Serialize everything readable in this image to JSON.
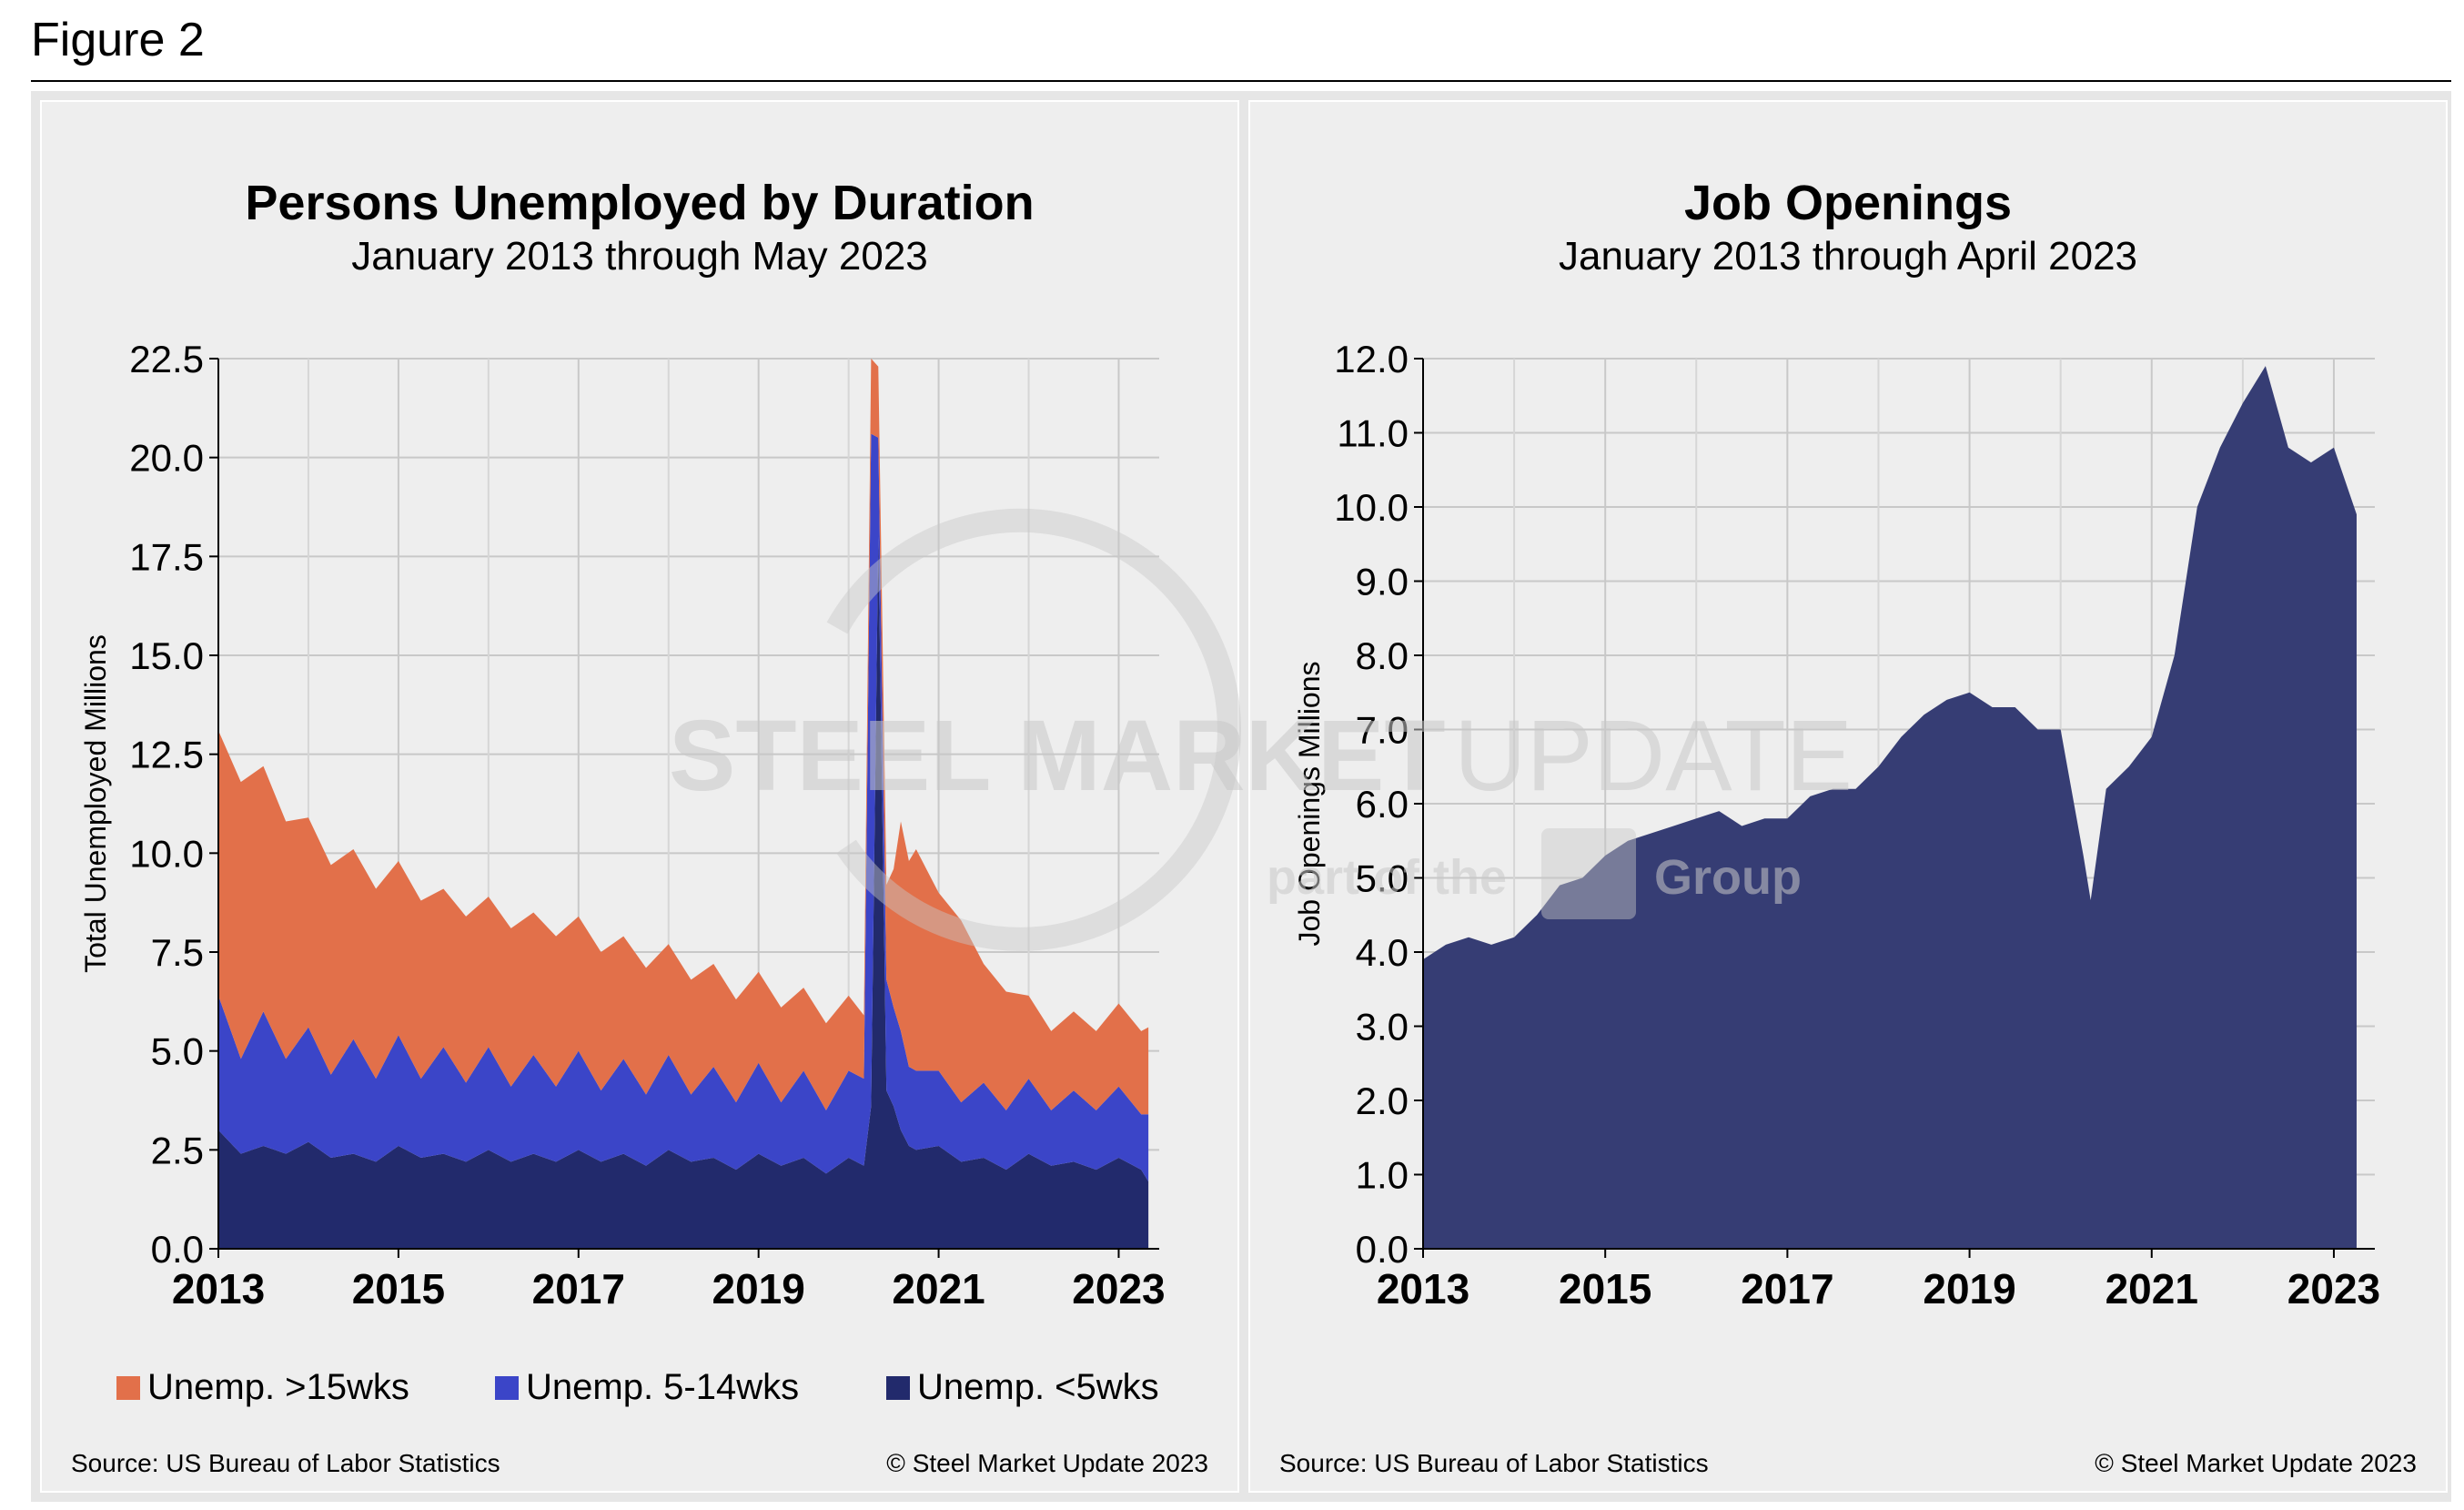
{
  "figure_label": "Figure 2",
  "colors": {
    "long": "#e2704a",
    "mid": "#3b45c8",
    "short": "#222a6c",
    "openings": "#363d74",
    "watermark": "#c8c8c8"
  },
  "watermark": {
    "line1_bold": "STEEL MARKET",
    "line1_light": "UPDATE",
    "line2": "part of the",
    "line2_end": "Group"
  },
  "chart_data": [
    {
      "type": "area",
      "stacked": true,
      "title": "Persons Unemployed by Duration",
      "subtitle": "January 2013 through May 2023",
      "ylabel": "Total Unemployed Millions",
      "xlabel": "",
      "ylim": [
        0,
        22.5
      ],
      "yticks": [
        "0.0",
        "2.5",
        "5.0",
        "7.5",
        "10.0",
        "12.5",
        "15.0",
        "17.5",
        "20.0",
        "22.5"
      ],
      "ytick_values": [
        0,
        2.5,
        5,
        7.5,
        10,
        12.5,
        15,
        17.5,
        20,
        22.5
      ],
      "xticks": [
        "2013",
        "2015",
        "2017",
        "2019",
        "2021",
        "2023"
      ],
      "xtick_values": [
        2013,
        2015,
        2017,
        2019,
        2021,
        2023
      ],
      "x": [
        2013.0,
        2013.25,
        2013.5,
        2013.75,
        2014.0,
        2014.25,
        2014.5,
        2014.75,
        2015.0,
        2015.25,
        2015.5,
        2015.75,
        2016.0,
        2016.25,
        2016.5,
        2016.75,
        2017.0,
        2017.25,
        2017.5,
        2017.75,
        2018.0,
        2018.25,
        2018.5,
        2018.75,
        2019.0,
        2019.25,
        2019.5,
        2019.75,
        2020.0,
        2020.17,
        2020.25,
        2020.33,
        2020.42,
        2020.5,
        2020.58,
        2020.67,
        2020.75,
        2021.0,
        2021.25,
        2021.5,
        2021.75,
        2022.0,
        2022.25,
        2022.5,
        2022.75,
        2023.0,
        2023.25,
        2023.33
      ],
      "series": [
        {
          "name": "Unemp. <5wks",
          "color": "#222a6c",
          "values": [
            3.0,
            2.4,
            2.6,
            2.4,
            2.7,
            2.3,
            2.4,
            2.2,
            2.6,
            2.3,
            2.4,
            2.2,
            2.5,
            2.2,
            2.4,
            2.2,
            2.5,
            2.2,
            2.4,
            2.1,
            2.5,
            2.2,
            2.3,
            2.0,
            2.4,
            2.1,
            2.3,
            1.9,
            2.3,
            2.1,
            3.6,
            18.0,
            4.0,
            3.6,
            3.0,
            2.6,
            2.5,
            2.6,
            2.2,
            2.3,
            2.0,
            2.4,
            2.1,
            2.2,
            2.0,
            2.3,
            2.0,
            1.7
          ]
        },
        {
          "name": "Unemp. 5-14wks",
          "color": "#3b45c8",
          "values": [
            3.4,
            2.4,
            3.4,
            2.4,
            2.9,
            2.1,
            2.9,
            2.1,
            2.8,
            2.0,
            2.7,
            2.0,
            2.6,
            1.9,
            2.5,
            1.9,
            2.5,
            1.8,
            2.4,
            1.8,
            2.4,
            1.7,
            2.3,
            1.7,
            2.3,
            1.6,
            2.2,
            1.6,
            2.2,
            2.2,
            17.0,
            2.5,
            2.8,
            2.5,
            2.5,
            2.0,
            2.0,
            1.9,
            1.5,
            1.9,
            1.5,
            1.9,
            1.4,
            1.8,
            1.5,
            1.8,
            1.4,
            1.7
          ]
        },
        {
          "name": "Unemp. >15wks",
          "color": "#e2704a",
          "values": [
            6.7,
            7.0,
            6.2,
            6.0,
            5.3,
            5.3,
            4.8,
            4.8,
            4.4,
            4.5,
            4.0,
            4.2,
            3.8,
            4.0,
            3.6,
            3.8,
            3.4,
            3.5,
            3.1,
            3.2,
            2.8,
            2.9,
            2.6,
            2.6,
            2.3,
            2.4,
            2.1,
            2.2,
            1.9,
            1.6,
            1.9,
            1.8,
            2.4,
            3.5,
            5.3,
            5.2,
            5.6,
            4.5,
            4.6,
            3.0,
            3.0,
            2.1,
            2.0,
            2.0,
            2.0,
            2.1,
            2.1,
            2.2
          ]
        }
      ],
      "source": "Source: US Bureau of Labor Statistics",
      "copyright": "© Steel Market Update 2023"
    },
    {
      "type": "area",
      "title": "Job Openings",
      "subtitle": "January 2013 through April 2023",
      "ylabel": "Job Openings Millions",
      "xlabel": "",
      "ylim": [
        0,
        12
      ],
      "yticks": [
        "0.0",
        "1.0",
        "2.0",
        "3.0",
        "4.0",
        "5.0",
        "6.0",
        "7.0",
        "8.0",
        "9.0",
        "10.0",
        "11.0",
        "12.0"
      ],
      "ytick_values": [
        0,
        1,
        2,
        3,
        4,
        5,
        6,
        7,
        8,
        9,
        10,
        11,
        12
      ],
      "xticks": [
        "2013",
        "2015",
        "2017",
        "2019",
        "2021",
        "2023"
      ],
      "xtick_values": [
        2013,
        2015,
        2017,
        2019,
        2021,
        2023
      ],
      "x": [
        2013.0,
        2013.25,
        2013.5,
        2013.75,
        2014.0,
        2014.25,
        2014.5,
        2014.75,
        2015.0,
        2015.25,
        2015.5,
        2015.75,
        2016.0,
        2016.25,
        2016.5,
        2016.75,
        2017.0,
        2017.25,
        2017.5,
        2017.75,
        2018.0,
        2018.25,
        2018.5,
        2018.75,
        2019.0,
        2019.25,
        2019.5,
        2019.75,
        2020.0,
        2020.25,
        2020.33,
        2020.5,
        2020.75,
        2021.0,
        2021.25,
        2021.5,
        2021.75,
        2022.0,
        2022.25,
        2022.5,
        2022.75,
        2023.0,
        2023.25
      ],
      "series": [
        {
          "name": "Job Openings",
          "color": "#363d74",
          "values": [
            3.9,
            4.1,
            4.2,
            4.1,
            4.2,
            4.5,
            4.9,
            5.0,
            5.3,
            5.5,
            5.6,
            5.7,
            5.8,
            5.9,
            5.7,
            5.8,
            5.8,
            6.1,
            6.2,
            6.2,
            6.5,
            6.9,
            7.2,
            7.4,
            7.5,
            7.3,
            7.3,
            7.0,
            7.0,
            5.3,
            4.7,
            6.2,
            6.5,
            6.9,
            8.0,
            10.0,
            10.8,
            11.4,
            11.9,
            10.8,
            10.6,
            10.8,
            9.9
          ]
        }
      ],
      "source": "Source: US Bureau of Labor Statistics",
      "copyright": "© Steel Market Update 2023"
    }
  ]
}
